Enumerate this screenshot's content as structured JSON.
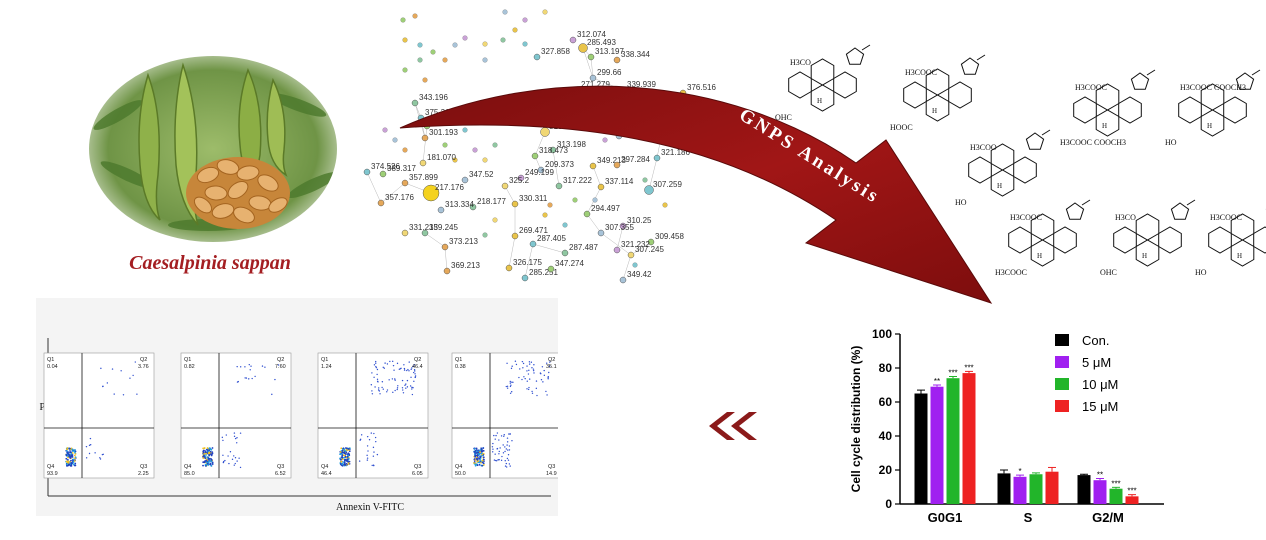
{
  "plant": {
    "name": "Caesalpinia sappan"
  },
  "analysis": {
    "label": "GNPS Analysis"
  },
  "network": {
    "node_labels": [
      "285.493",
      "327.858",
      "313.197",
      "338.344",
      "299.66",
      "271.279",
      "339.939",
      "343.196",
      "376.516",
      "375.210",
      "345.139",
      "301.193",
      "283.27",
      "366.34",
      "318.031",
      "313.198",
      "349.213",
      "321.186",
      "318.473",
      "297.284",
      "209.373",
      "249.199",
      "325.2",
      "317.222",
      "337.114",
      "374.526",
      "389.317",
      "357.899",
      "347.52",
      "217.176",
      "181.070",
      "218.177",
      "330.311",
      "307.259",
      "294.497",
      "357.176",
      "313.334",
      "310.25",
      "331.213",
      "359.245",
      "269.471",
      "287.405",
      "309.458",
      "373.213",
      "307.355",
      "321.232",
      "307.245",
      "287.487",
      "326.175",
      "285.251",
      "347.274",
      "369.213",
      "349.42",
      "312.074"
    ]
  },
  "structures": {
    "labels": [
      "H3CO",
      "OHC",
      "H3COOC",
      "HOOC",
      "H3COOC",
      "H3COOC COOCH3",
      "H3COOC COOCH3",
      "HO",
      "H3COO",
      "HO",
      "H3COOC",
      "H3COOC",
      "H3CO",
      "OHC",
      "H3COOC",
      "HO"
    ]
  },
  "flow": {
    "y_label": "PI",
    "x_label": "Annexin V-FITC",
    "plots": [
      {
        "q1": "0.04",
        "q2": "3.76",
        "q3": "2.25",
        "q4": "93.9"
      },
      {
        "q1": "0.82",
        "q2": "7.60",
        "q3": "6.52",
        "q4": "85.0"
      },
      {
        "q1": "1.24",
        "q2": "46.4",
        "q3": "6.05",
        "q4": "46.4"
      },
      {
        "q1": "0.38",
        "q2": "35.1",
        "q3": "14.9",
        "q4": "50.0"
      }
    ],
    "quadrant_names": [
      "Q1",
      "Q2",
      "Q3",
      "Q4"
    ]
  },
  "chart_data": {
    "type": "bar",
    "title": "",
    "ylabel": "Cell cycle distribution (%)",
    "xlabel": "",
    "categories": [
      "G0G1",
      "S",
      "G2/M"
    ],
    "ylim": [
      0,
      100
    ],
    "yticks": [
      0,
      20,
      40,
      60,
      80,
      100
    ],
    "legend_position": "top-right",
    "series": [
      {
        "name": "Con.",
        "values": [
          65,
          18,
          17
        ],
        "errors": [
          2,
          2,
          0.5
        ],
        "sig": [
          "",
          "",
          ""
        ],
        "color": "#000000"
      },
      {
        "name": "5 μM",
        "values": [
          69,
          16,
          14
        ],
        "errors": [
          1,
          1,
          1
        ],
        "sig": [
          "**",
          "*",
          "**"
        ],
        "color": "#a020f0"
      },
      {
        "name": "10 μM",
        "values": [
          74,
          17.5,
          9
        ],
        "errors": [
          1,
          0.8,
          0.8
        ],
        "sig": [
          "***",
          "",
          "***"
        ],
        "color": "#22b52a"
      },
      {
        "name": "15 μM",
        "values": [
          77,
          19,
          4.5
        ],
        "errors": [
          1,
          2.5,
          1
        ],
        "sig": [
          "***",
          "",
          "***"
        ],
        "color": "#ee2222"
      }
    ]
  }
}
